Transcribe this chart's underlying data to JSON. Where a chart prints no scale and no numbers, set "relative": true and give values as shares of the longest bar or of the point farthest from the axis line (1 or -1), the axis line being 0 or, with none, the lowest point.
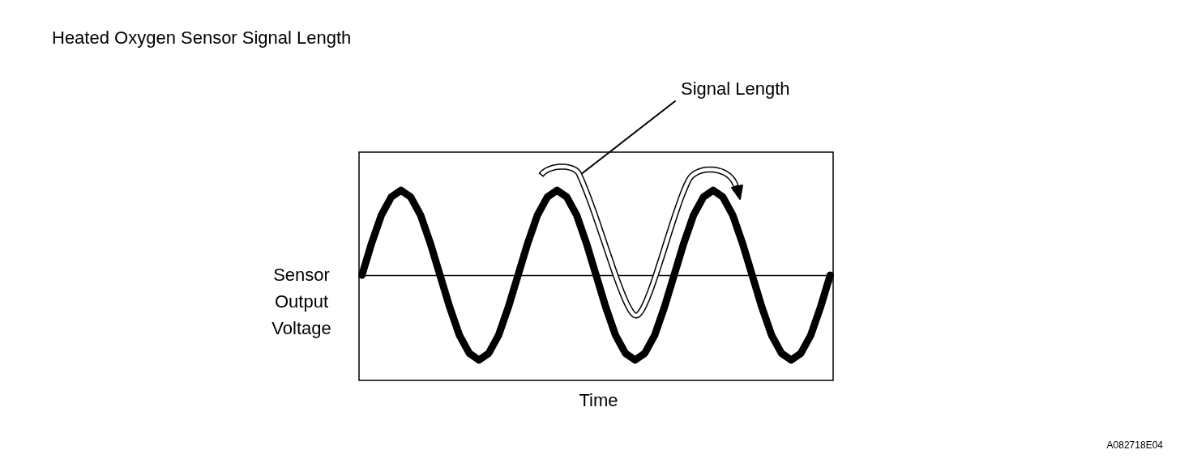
{
  "chart_data": {
    "type": "line",
    "relative": true,
    "title": "Heated Oxygen Sensor Signal Length",
    "xlabel": "Time",
    "ylabel": "Sensor Output Voltage",
    "annotations": [
      "Signal Length",
      "A082718E04"
    ],
    "categories": [
      null,
      null,
      null,
      null,
      null,
      null,
      null,
      null,
      null,
      null,
      null,
      null,
      null,
      null,
      null,
      null,
      null,
      null,
      null,
      null,
      null,
      null,
      null,
      null,
      null,
      null,
      null,
      null,
      null,
      null,
      null,
      null,
      null,
      null,
      null,
      null,
      null,
      null,
      null,
      null,
      null,
      null,
      null,
      null,
      null,
      null,
      null,
      null,
      null
    ],
    "series": [
      {
        "color": "#000000",
        "values": [
          0,
          0.38,
          0.71,
          0.92,
          1,
          0.92,
          0.71,
          0.38,
          0,
          -0.38,
          -0.71,
          -0.92,
          -1,
          -0.92,
          -0.71,
          -0.38,
          0,
          0.38,
          0.71,
          0.92,
          1,
          0.92,
          0.71,
          0.38,
          0,
          -0.38,
          -0.71,
          -0.92,
          -1,
          -0.92,
          -0.71,
          -0.38,
          0,
          0.38,
          0.71,
          0.92,
          1,
          0.92,
          0.71,
          0.38,
          0,
          -0.38,
          -0.71,
          -0.92,
          -1,
          -0.92,
          -0.71,
          -0.38,
          0
        ]
      }
    ],
    "line_style": "solid"
  }
}
